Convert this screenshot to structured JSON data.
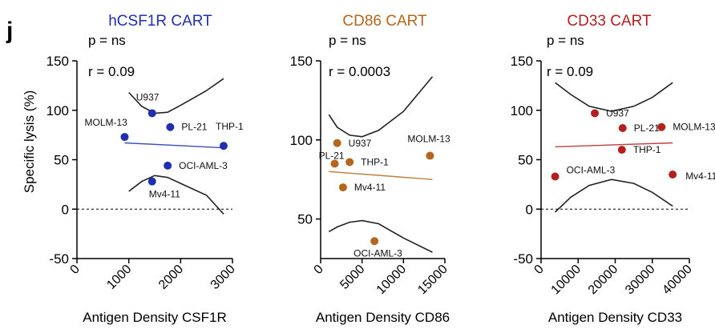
{
  "panel_letter": "j",
  "ylabel": "Specific lysis (%)",
  "chart_data": [
    {
      "type": "scatter",
      "title": "hCSF1R CART",
      "color": "#1f2fb0",
      "p_text": "p = ns",
      "r_text": "r = 0.09",
      "xlabel": "Antigen Density CSF1R",
      "ylabel": "Specific lysis (%)",
      "xlim": [
        0,
        3000
      ],
      "ylim": [
        -50,
        150
      ],
      "xticks": [
        "0",
        "1000",
        "2000",
        "3000"
      ],
      "yticks": [
        "-50",
        "0",
        "50",
        "100",
        "150"
      ],
      "points": [
        {
          "label": "U937",
          "x": 1450,
          "y": 97
        },
        {
          "label": "PL-21",
          "x": 1800,
          "y": 83
        },
        {
          "label": "MOLM-13",
          "x": 920,
          "y": 73
        },
        {
          "label": "THP-1",
          "x": 2830,
          "y": 64
        },
        {
          "label": "OCI-AML-3",
          "x": 1750,
          "y": 44
        },
        {
          "label": "Mv4-11",
          "x": 1450,
          "y": 28
        }
      ],
      "regression": {
        "x": [
          920,
          2830
        ],
        "y": [
          67,
          62
        ]
      },
      "ci_upper": [
        [
          1000,
          118
        ],
        [
          1250,
          104
        ],
        [
          1500,
          97
        ],
        [
          1750,
          98
        ],
        [
          2000,
          105
        ],
        [
          2500,
          120
        ],
        [
          2830,
          132
        ]
      ],
      "ci_lower": [
        [
          1000,
          18
        ],
        [
          1250,
          28
        ],
        [
          1500,
          34
        ],
        [
          1750,
          32
        ],
        [
          2000,
          26
        ],
        [
          2500,
          14
        ],
        [
          2830,
          -5
        ]
      ]
    },
    {
      "type": "scatter",
      "title": "CD86 CART",
      "color": "#b5661c",
      "p_text": "p = ns",
      "r_text": "r = 0.0003",
      "xlabel": "Antigen Density CD86",
      "ylabel": "",
      "xlim": [
        0,
        15000
      ],
      "ylim": [
        25,
        150
      ],
      "xticks": [
        "0",
        "5000",
        "10000",
        "15000"
      ],
      "yticks": [
        "50",
        "100",
        "150"
      ],
      "points": [
        {
          "label": "U937",
          "x": 2000,
          "y": 98
        },
        {
          "label": "PL-21",
          "x": 1700,
          "y": 85
        },
        {
          "label": "THP-1",
          "x": 3500,
          "y": 86
        },
        {
          "label": "Mv4-11",
          "x": 2700,
          "y": 70
        },
        {
          "label": "MOLM-13",
          "x": 13200,
          "y": 90
        },
        {
          "label": "OCI-AML-3",
          "x": 6500,
          "y": 36
        }
      ],
      "regression": {
        "x": [
          1000,
          13500
        ],
        "y": [
          80,
          75
        ]
      },
      "ci_upper": [
        [
          1000,
          116
        ],
        [
          2000,
          108
        ],
        [
          3500,
          103
        ],
        [
          5000,
          102
        ],
        [
          7000,
          106
        ],
        [
          10000,
          118
        ],
        [
          13500,
          140
        ]
      ],
      "ci_lower": [
        [
          1000,
          42
        ],
        [
          2000,
          45
        ],
        [
          3500,
          48
        ],
        [
          5000,
          49
        ],
        [
          7000,
          47
        ],
        [
          10000,
          38
        ],
        [
          13500,
          29
        ]
      ]
    },
    {
      "type": "scatter",
      "title": "CD33 CART",
      "color": "#b41f1f",
      "p_text": "p = ns",
      "r_text": "r = 0.09",
      "xlabel": "Antigen Density CD33",
      "ylabel": "",
      "xlim": [
        0,
        40000
      ],
      "ylim": [
        -50,
        150
      ],
      "xticks": [
        "0",
        "10000",
        "20000",
        "30000",
        "40000"
      ],
      "yticks": [
        "-50",
        "0",
        "50",
        "100",
        "150"
      ],
      "points": [
        {
          "label": "U937",
          "x": 14500,
          "y": 97
        },
        {
          "label": "PL-21",
          "x": 22000,
          "y": 82
        },
        {
          "label": "MOLM-13",
          "x": 32500,
          "y": 83
        },
        {
          "label": "THP-1",
          "x": 21800,
          "y": 60
        },
        {
          "label": "OCI-AML-3",
          "x": 3800,
          "y": 33
        },
        {
          "label": "Mv4-11",
          "x": 35500,
          "y": 35
        }
      ],
      "regression": {
        "x": [
          3800,
          35500
        ],
        "y": [
          63,
          67
        ]
      },
      "ci_upper": [
        [
          3800,
          128
        ],
        [
          8000,
          116
        ],
        [
          13000,
          104
        ],
        [
          19000,
          99
        ],
        [
          25000,
          104
        ],
        [
          30000,
          113
        ],
        [
          35500,
          128
        ]
      ],
      "ci_lower": [
        [
          3800,
          -3
        ],
        [
          8000,
          12
        ],
        [
          13000,
          24
        ],
        [
          19000,
          30
        ],
        [
          25000,
          26
        ],
        [
          30000,
          17
        ],
        [
          35500,
          3
        ]
      ]
    }
  ]
}
